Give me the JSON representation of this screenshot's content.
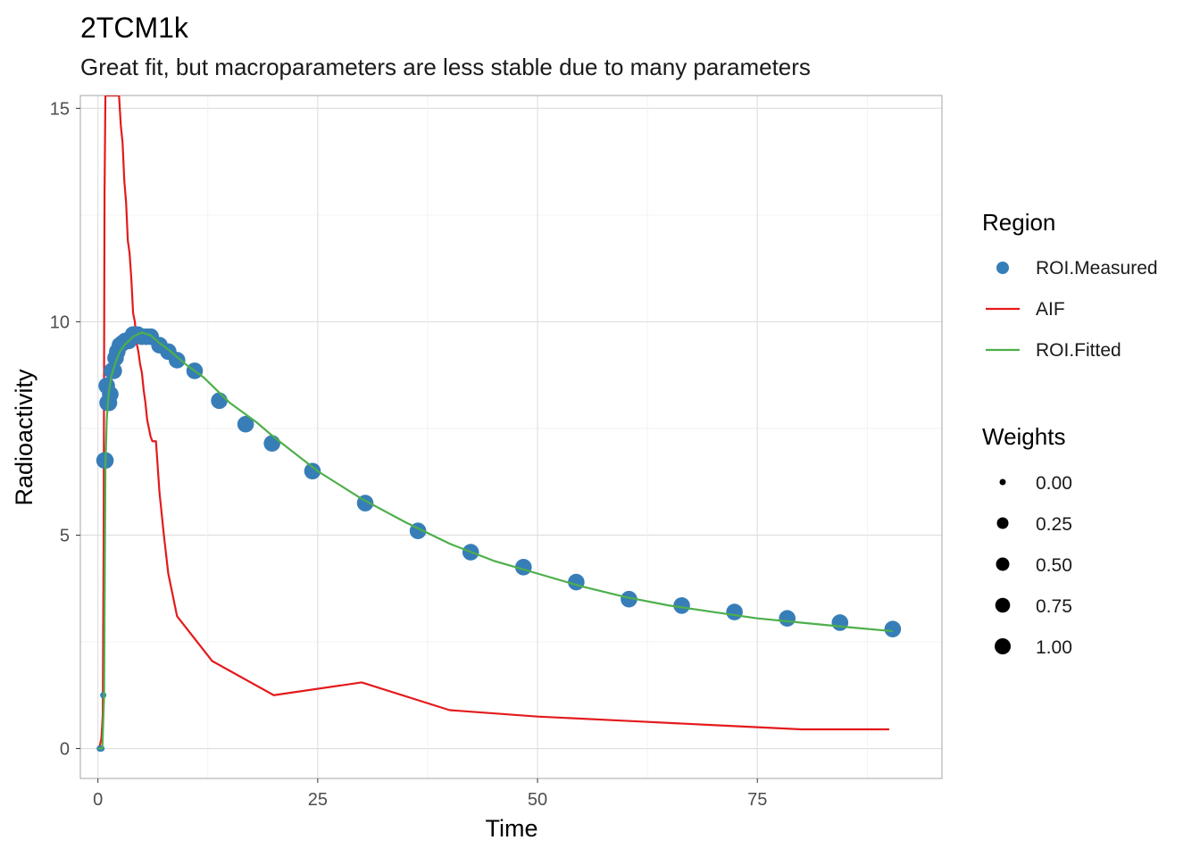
{
  "chart_data": {
    "type": "scatter",
    "title": "2TCM1k",
    "subtitle": "Great fit, but macroparameters are less stable due to many parameters",
    "xlabel": "Time",
    "ylabel": "Radioactivity",
    "xlim": [
      -2,
      96
    ],
    "ylim": [
      -0.7,
      15.3
    ],
    "x_ticks": [
      0,
      25,
      50,
      75
    ],
    "y_ticks": [
      0,
      5,
      10,
      15
    ],
    "x_tick_labels": [
      "0",
      "25",
      "50",
      "75"
    ],
    "y_tick_labels": [
      "0",
      "5",
      "10",
      "15"
    ],
    "grid": true,
    "legend_position": "right",
    "series": [
      {
        "name": "ROI.Measured",
        "kind": "points",
        "color": "#377EB8",
        "x": [
          0.2,
          0.4,
          0.6,
          0.75,
          0.85,
          1.0,
          1.1,
          1.25,
          1.4,
          1.6,
          1.8,
          2.0,
          2.2,
          2.5,
          2.8,
          3.1,
          3.5,
          4.0,
          4.5,
          5.0,
          5.5,
          6.0,
          7.0,
          8.0,
          9.0,
          11.0,
          13.8,
          16.8,
          19.8,
          24.4,
          30.4,
          36.4,
          42.4,
          48.4,
          54.4,
          60.4,
          66.4,
          72.4,
          78.4,
          84.4,
          90.4
        ],
        "y": [
          0.0,
          0.0,
          1.25,
          6.75,
          6.75,
          8.5,
          8.1,
          8.1,
          8.3,
          8.85,
          8.85,
          9.15,
          9.3,
          9.45,
          9.5,
          9.55,
          9.55,
          9.7,
          9.7,
          9.65,
          9.65,
          9.65,
          9.45,
          9.3,
          9.1,
          8.85,
          8.15,
          7.6,
          7.15,
          6.5,
          5.75,
          5.1,
          4.6,
          4.25,
          3.9,
          3.5,
          3.35,
          3.2,
          3.05,
          2.95,
          2.8
        ],
        "weights": [
          0.0,
          0.0,
          0.0,
          1.0,
          1.0,
          1.0,
          1.0,
          1.0,
          1.0,
          1.0,
          1.0,
          1.0,
          1.0,
          1.0,
          1.0,
          1.0,
          1.0,
          1.0,
          1.0,
          1.0,
          1.0,
          1.0,
          1.0,
          1.0,
          1.0,
          1.0,
          1.0,
          1.0,
          1.0,
          1.0,
          1.0,
          1.0,
          1.0,
          1.0,
          1.0,
          1.0,
          1.0,
          1.0,
          1.0,
          1.0,
          1.0
        ]
      },
      {
        "name": "AIF",
        "kind": "line",
        "color": "#E41A1C",
        "x": [
          0.0,
          0.2,
          0.4,
          0.55,
          0.65,
          0.75,
          0.85,
          2.4,
          2.6,
          2.8,
          3.0,
          3.2,
          3.4,
          3.6,
          3.8,
          4.0,
          4.2,
          4.4,
          4.6,
          4.8,
          5.0,
          5.2,
          5.4,
          5.6,
          5.8,
          6.0,
          6.2,
          6.6,
          7.0,
          7.5,
          8.0,
          9.0,
          13.0,
          20.0,
          30.0,
          40.0,
          50.0,
          60.0,
          70.0,
          80.0,
          90.0
        ],
        "y": [
          0.0,
          0.05,
          0.25,
          0.8,
          5.0,
          13.0,
          15.3,
          15.3,
          14.6,
          14.2,
          13.3,
          12.8,
          11.9,
          11.6,
          11.0,
          10.2,
          10.0,
          9.5,
          9.3,
          9.0,
          8.8,
          8.4,
          8.1,
          7.7,
          7.5,
          7.3,
          7.2,
          7.2,
          6.0,
          5.0,
          4.1,
          3.1,
          2.05,
          1.25,
          1.55,
          0.9,
          0.75,
          0.65,
          0.55,
          0.45,
          0.45
        ]
      },
      {
        "name": "ROI.Fitted",
        "kind": "line",
        "color": "#4DAF4A",
        "x": [
          0.0,
          0.5,
          0.7,
          0.85,
          1.0,
          1.2,
          1.5,
          2.0,
          2.5,
          3.0,
          4.0,
          5.0,
          6.0,
          7.0,
          8.0,
          10.0,
          12.0,
          15.0,
          18.0,
          20.0,
          25.0,
          30.0,
          35.0,
          40.0,
          45.0,
          50.0,
          55.0,
          60.0,
          65.0,
          70.0,
          75.0,
          80.0,
          85.0,
          90.4
        ],
        "y": [
          0.0,
          0.0,
          1.25,
          6.6,
          7.7,
          8.3,
          8.7,
          9.05,
          9.3,
          9.45,
          9.65,
          9.75,
          9.68,
          9.5,
          9.35,
          9.0,
          8.7,
          8.1,
          7.65,
          7.3,
          6.5,
          5.85,
          5.3,
          4.8,
          4.4,
          4.1,
          3.8,
          3.55,
          3.35,
          3.2,
          3.05,
          2.95,
          2.85,
          2.75
        ]
      }
    ],
    "legends": {
      "region": {
        "title": "Region",
        "items": [
          {
            "label": "ROI.Measured",
            "kind": "point",
            "color": "#377EB8"
          },
          {
            "label": "AIF",
            "kind": "line",
            "color": "#E41A1C"
          },
          {
            "label": "ROI.Fitted",
            "kind": "line",
            "color": "#4DAF4A"
          }
        ]
      },
      "weights": {
        "title": "Weights",
        "items": [
          {
            "label": "0.00",
            "value": 0.0
          },
          {
            "label": "0.25",
            "value": 0.25
          },
          {
            "label": "0.50",
            "value": 0.5
          },
          {
            "label": "0.75",
            "value": 0.75
          },
          {
            "label": "1.00",
            "value": 1.0
          }
        ]
      }
    }
  }
}
